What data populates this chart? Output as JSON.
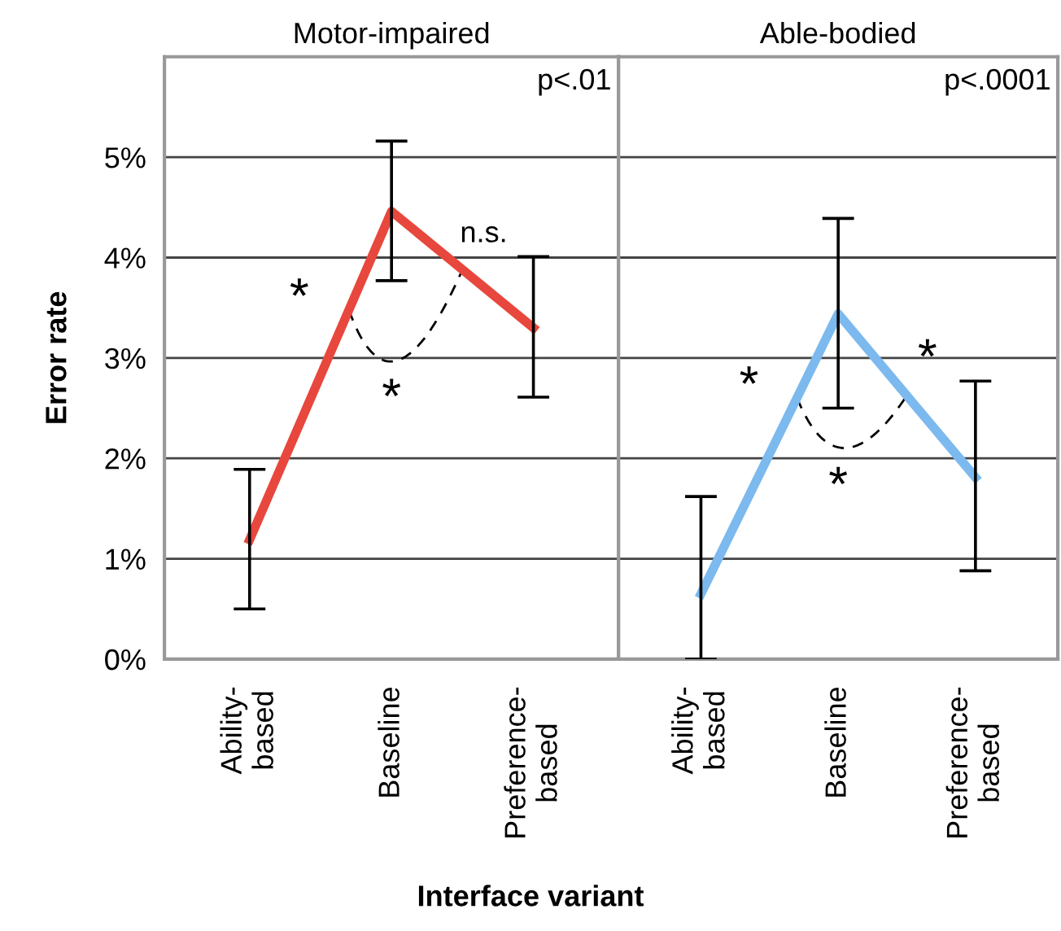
{
  "chart_data": [
    {
      "type": "line",
      "title": "Motor-impaired",
      "xlabel": "Interface variant",
      "ylabel": "Error rate",
      "categories": [
        "Ability-\nbased",
        "Baseline",
        "Preference-\nbased"
      ],
      "series": [
        {
          "color": "#e8473d",
          "values": [
            1.19,
            4.46,
            3.3
          ],
          "errors": [
            [
              0.5,
              1.89
            ],
            [
              3.77,
              5.16
            ],
            [
              2.61,
              4.01
            ]
          ]
        }
      ],
      "ylim": [
        0,
        6
      ],
      "yticks": [
        {
          "value": 0,
          "label": "0%"
        },
        {
          "value": 1,
          "label": "1%"
        },
        {
          "value": 2,
          "label": "2%"
        },
        {
          "value": 3,
          "label": "3%"
        },
        {
          "value": 4,
          "label": "4%"
        },
        {
          "value": 5,
          "label": "5%"
        }
      ],
      "grid": "y",
      "marker": "none",
      "line_style": "solid",
      "annotations": [
        "p<.01",
        "*",
        "*",
        "n.s."
      ]
    },
    {
      "type": "line",
      "title": "Able-bodied",
      "categories": [
        "Ability-\nbased",
        "Baseline",
        "Preference-\nbased"
      ],
      "series": [
        {
          "color": "#7cb9ee",
          "values": [
            0.65,
            3.44,
            1.81
          ],
          "errors": [
            [
              0,
              1.62
            ],
            [
              2.5,
              4.39
            ],
            [
              0.88,
              2.77
            ]
          ]
        }
      ],
      "ylim": [
        0,
        6
      ],
      "yticks": [
        {
          "value": 0,
          "label": null
        },
        {
          "value": 1,
          "label": null
        },
        {
          "value": 2,
          "label": null
        },
        {
          "value": 3,
          "label": null
        },
        {
          "value": 4,
          "label": null
        },
        {
          "value": 5,
          "label": null
        }
      ],
      "grid": "y",
      "marker": "none",
      "line_style": "solid",
      "tick_labels": "x",
      "annotations": [
        "p<.0001",
        "*",
        "*",
        "*"
      ]
    }
  ]
}
